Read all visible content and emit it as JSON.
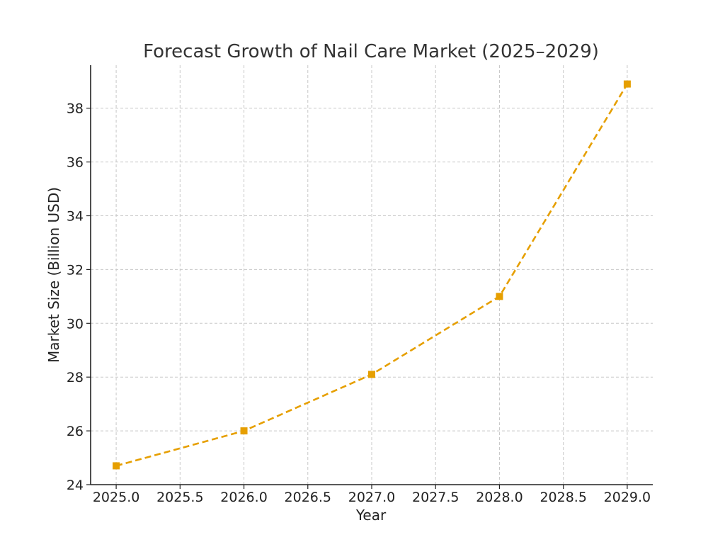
{
  "chart_data": {
    "type": "line",
    "title": "Forecast Growth of Nail Care Market (2025–2029)",
    "xlabel": "Year",
    "ylabel": "Market Size (Billion USD)",
    "x": [
      2025,
      2026,
      2027,
      2028,
      2029
    ],
    "series": [
      {
        "values": [
          24.7,
          26.0,
          28.1,
          31.0,
          38.9
        ]
      }
    ],
    "xlim": [
      2024.8,
      2029.2
    ],
    "ylim": [
      24,
      39.6
    ],
    "x_ticks": [
      "2025.0",
      "2025.5",
      "2026.0",
      "2026.5",
      "2027.0",
      "2027.5",
      "2028.0",
      "2028.5",
      "2029.0"
    ],
    "x_tick_values": [
      2025.0,
      2025.5,
      2026.0,
      2026.5,
      2027.0,
      2027.5,
      2028.0,
      2028.5,
      2029.0
    ],
    "y_ticks": [
      "24",
      "26",
      "28",
      "30",
      "32",
      "34",
      "36",
      "38"
    ],
    "y_tick_values": [
      24,
      26,
      28,
      30,
      32,
      34,
      36,
      38
    ],
    "grid": true,
    "line_style": "dashed",
    "marker": "square",
    "color": "#E69F00"
  }
}
